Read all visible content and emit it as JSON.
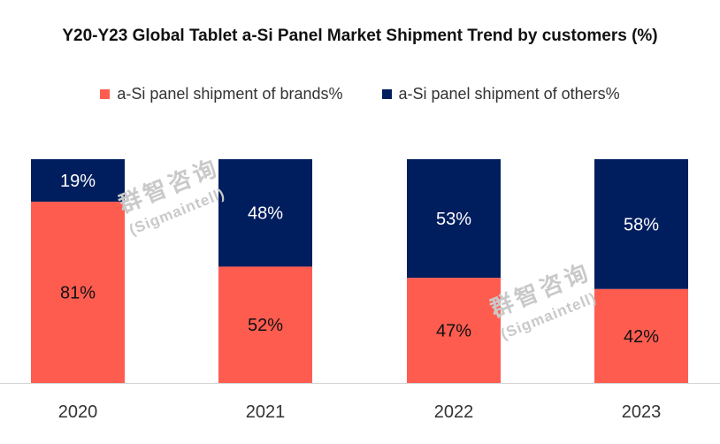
{
  "chart_data": {
    "type": "bar",
    "stacked": true,
    "title": "Y20-Y23 Global Tablet a-Si Panel Market Shipment Trend by customers (%)",
    "categories": [
      "2020",
      "2021",
      "2022",
      "2023"
    ],
    "series": [
      {
        "name": "a-Si panel shipment of brands%",
        "values": [
          81,
          52,
          47,
          42
        ],
        "color": "#ff5c50",
        "labels": [
          "81%",
          "52%",
          "47%",
          "42%"
        ]
      },
      {
        "name": "a-Si panel shipment of others%",
        "values": [
          19,
          48,
          53,
          58
        ],
        "color": "#001e5e",
        "labels": [
          "19%",
          "48%",
          "53%",
          "58%"
        ]
      }
    ],
    "ylim": [
      0,
      100
    ],
    "legend_position": "top",
    "grid": false,
    "watermark": {
      "cn": "群智咨询",
      "en": "(Sigmaintell)"
    }
  }
}
